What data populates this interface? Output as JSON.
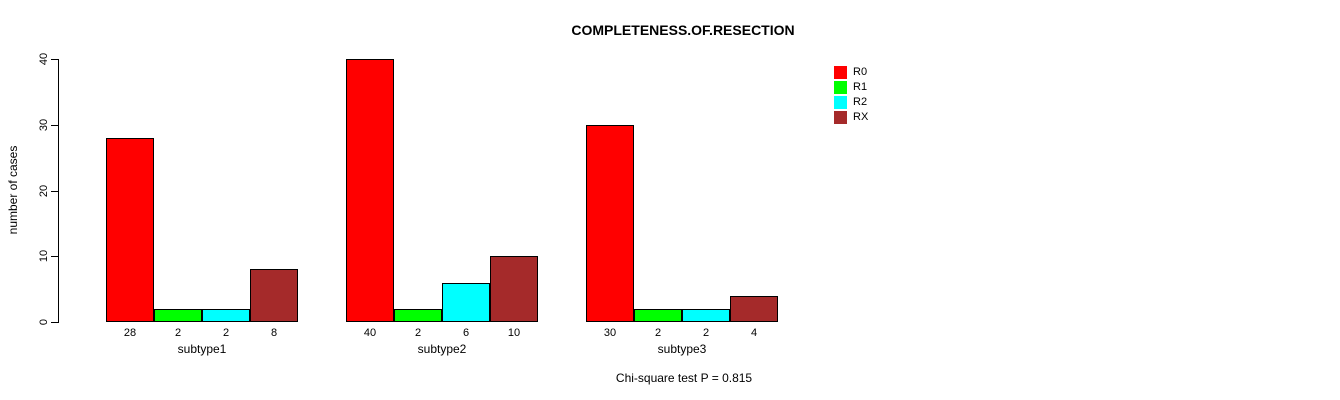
{
  "chart_data": {
    "type": "bar",
    "title": "COMPLETENESS.OF.RESECTION",
    "ylabel": "number of cases",
    "xlabel": "",
    "categories": [
      "subtype1",
      "subtype2",
      "subtype3"
    ],
    "series": [
      {
        "name": "R0",
        "color": "#FF0000",
        "values": [
          28,
          40,
          30
        ]
      },
      {
        "name": "R1",
        "color": "#00FF00",
        "values": [
          2,
          2,
          2
        ]
      },
      {
        "name": "R2",
        "color": "#00FFFF",
        "values": [
          2,
          6,
          2
        ]
      },
      {
        "name": "RX",
        "color": "#A52A2A",
        "values": [
          8,
          10,
          4
        ]
      }
    ],
    "ylim": [
      0,
      40
    ],
    "yticks": [
      0,
      10,
      20,
      30,
      40
    ],
    "grid": false,
    "legend_position": "top-right",
    "bar_value_labels_shown": true,
    "footnote": "Chi-square test P = 0.815",
    "colors": {
      "axis": "#000000",
      "text": "#000000",
      "background": "#FFFFFF"
    }
  }
}
